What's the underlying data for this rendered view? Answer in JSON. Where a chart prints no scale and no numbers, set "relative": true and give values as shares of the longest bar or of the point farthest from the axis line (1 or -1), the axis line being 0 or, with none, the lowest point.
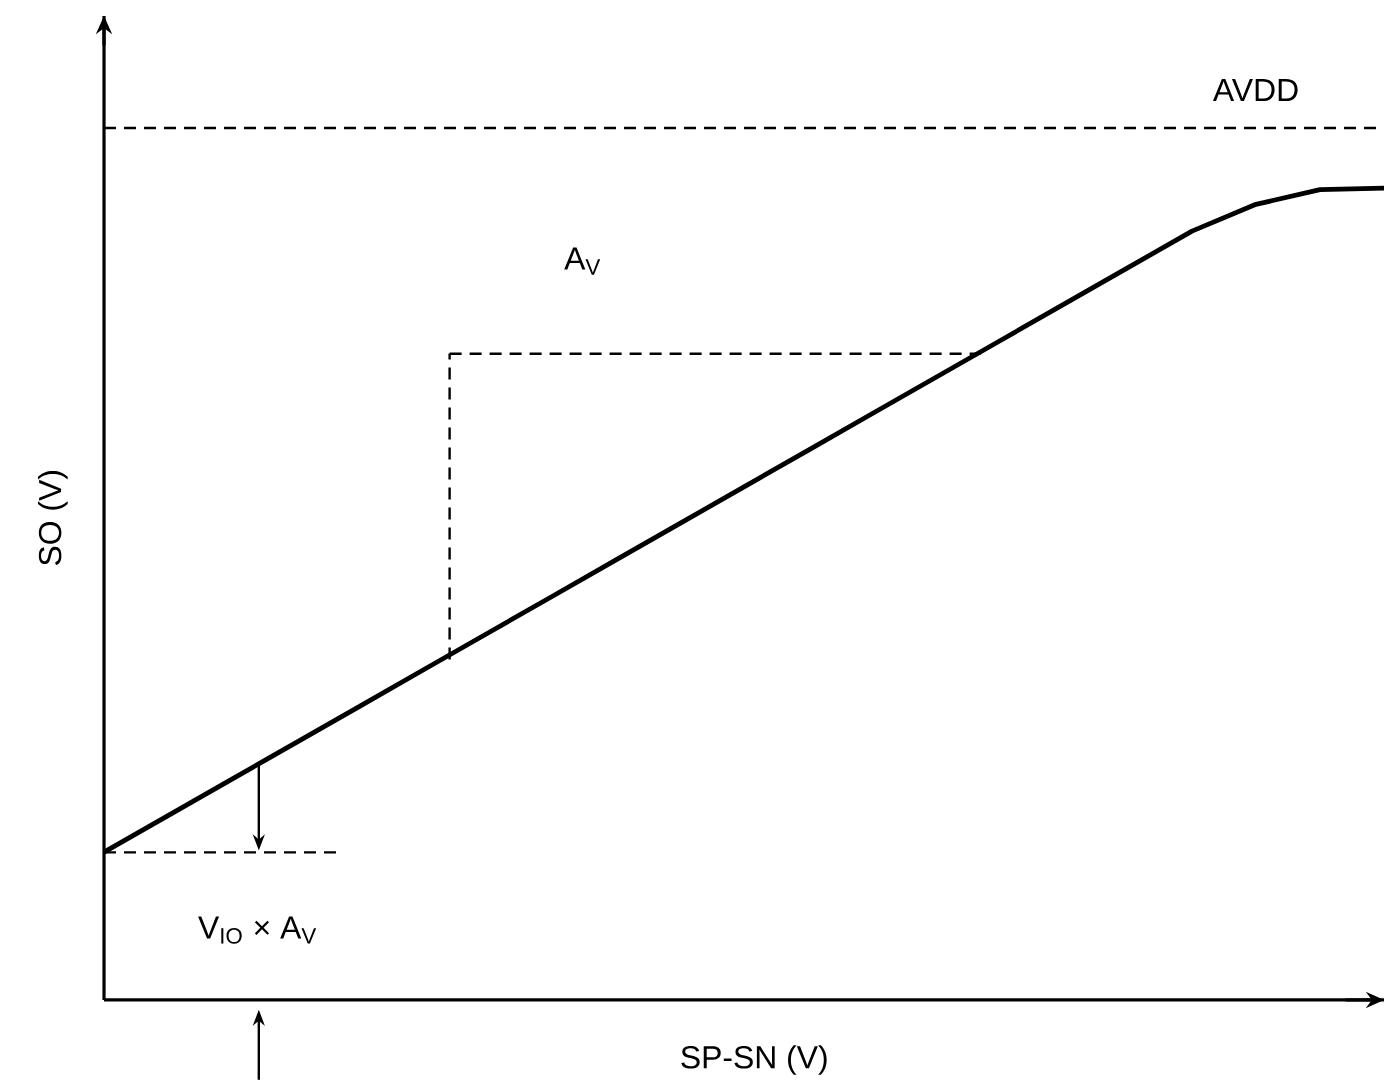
{
  "chart_data": {
    "type": "line",
    "relative": true,
    "xlabel": "SP-SN (V)",
    "ylabel": "SO (V)",
    "color": "#000000",
    "categories": [
      null,
      null,
      null,
      null,
      null,
      null,
      null,
      null,
      null,
      null,
      null,
      null,
      null,
      null,
      null,
      null,
      null,
      null,
      null,
      null,
      null
    ],
    "values": [
      0.182,
      0.227,
      0.272,
      0.317,
      0.362,
      0.407,
      0.452,
      0.497,
      0.542,
      0.587,
      0.632,
      0.677,
      0.722,
      0.767,
      0.812,
      0.857,
      0.902,
      0.947,
      0.98,
      0.998,
      1.0
    ],
    "ref_lines": [
      {
        "axis": "y",
        "value": 1.074,
        "label": "AVDD",
        "line_style": "dashed"
      },
      {
        "axis": "y",
        "value": 0.796,
        "label": "A$_{V}$",
        "line_style": "dashed"
      }
    ],
    "annotations": [
      "V$_{IO}$ × A$_{V}$"
    ]
  }
}
